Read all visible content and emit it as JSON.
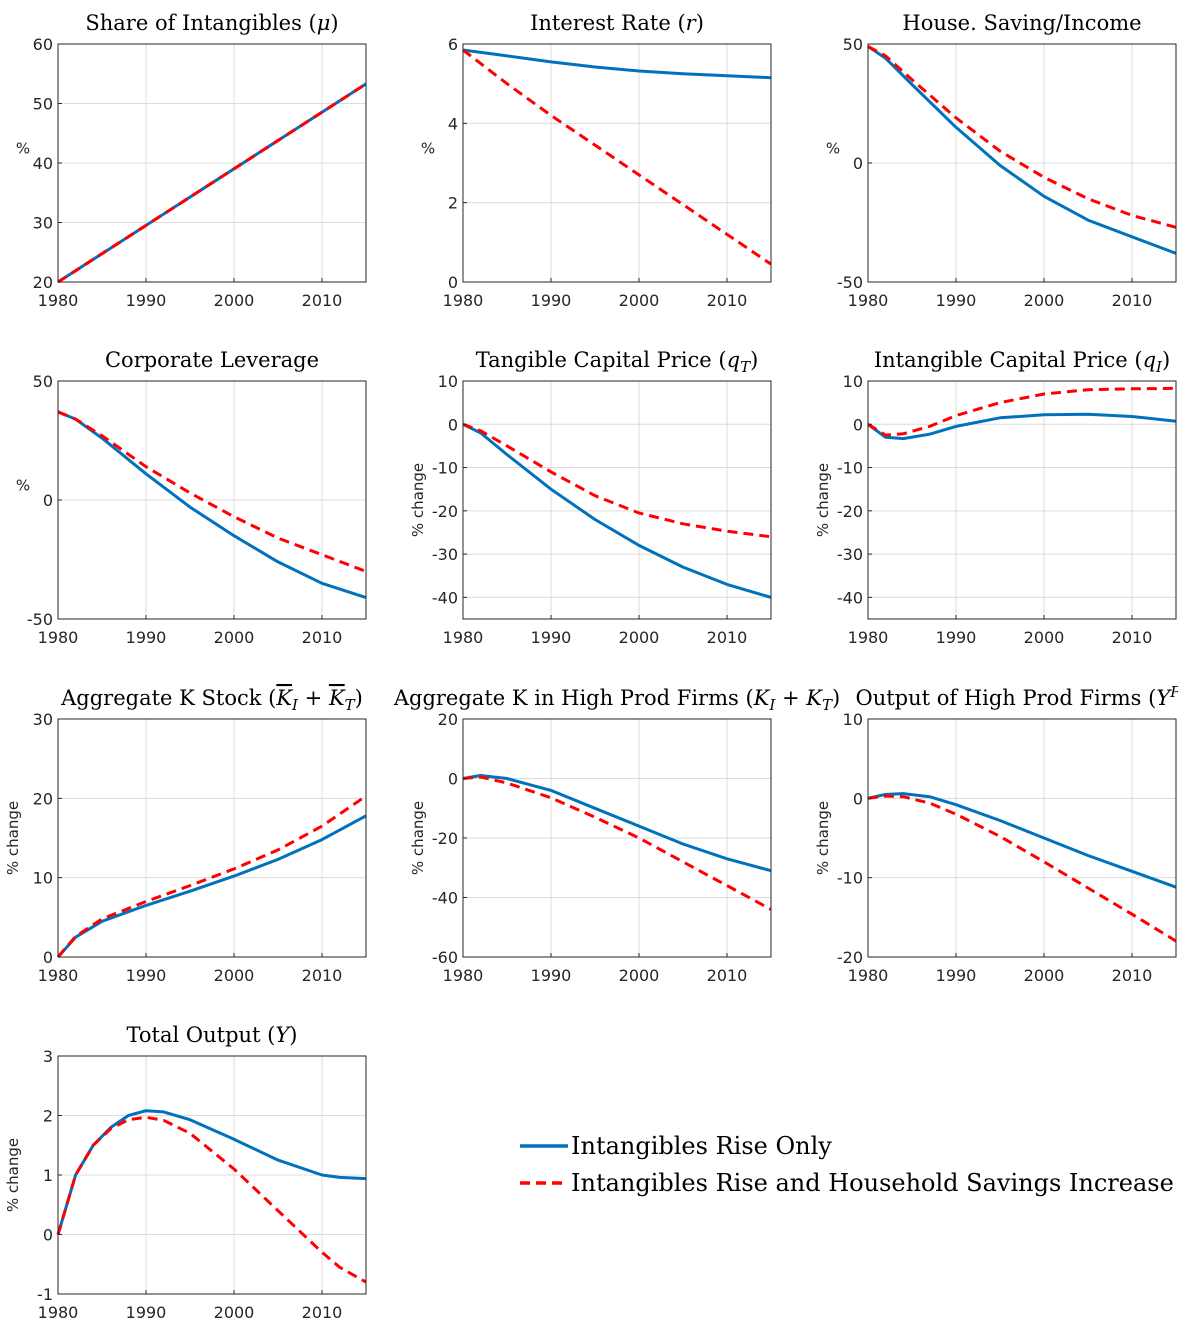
{
  "legend": {
    "series1": "Intangibles Rise Only",
    "series2": "Intangibles Rise and Household Savings Increase",
    "color1": "#0072BD",
    "color2": "#FF0000"
  },
  "chart_data": [
    {
      "type": "line",
      "title": "Share of Intangibles",
      "title_sym": "μ",
      "ylabel": "%",
      "xlim": [
        1980,
        2015
      ],
      "ylim": [
        20,
        60
      ],
      "xticks": [
        1980,
        1990,
        2000,
        2010
      ],
      "yticks": [
        20,
        30,
        40,
        50,
        60
      ],
      "x": [
        1980,
        2015
      ],
      "series": [
        {
          "values": [
            20,
            53.3
          ]
        },
        {
          "values": [
            20,
            53.3
          ]
        }
      ]
    },
    {
      "type": "line",
      "title": "Interest Rate",
      "title_sym": "r",
      "ylabel": "%",
      "xlim": [
        1980,
        2015
      ],
      "ylim": [
        0,
        6
      ],
      "xticks": [
        1980,
        1990,
        2000,
        2010
      ],
      "yticks": [
        0,
        2,
        4,
        6
      ],
      "x": [
        1980,
        1985,
        1990,
        1995,
        2000,
        2005,
        2010,
        2015
      ],
      "series": [
        {
          "values": [
            5.85,
            5.7,
            5.55,
            5.42,
            5.32,
            5.25,
            5.2,
            5.15
          ]
        },
        {
          "values": [
            5.85,
            5.0,
            4.2,
            3.45,
            2.7,
            1.95,
            1.2,
            0.45
          ]
        }
      ]
    },
    {
      "type": "line",
      "title": "House. Saving/Income",
      "title_sym": "",
      "ylabel": "%",
      "xlim": [
        1980,
        2015
      ],
      "ylim": [
        -50,
        50
      ],
      "xticks": [
        1980,
        1990,
        2000,
        2010
      ],
      "yticks": [
        -50,
        0,
        50
      ],
      "x": [
        1980,
        1982,
        1985,
        1990,
        1995,
        2000,
        2005,
        2010,
        2015
      ],
      "series": [
        {
          "values": [
            49,
            44,
            33,
            15,
            -1,
            -14,
            -24,
            -31,
            -38
          ]
        },
        {
          "values": [
            49,
            45,
            35,
            19,
            5,
            -6,
            -15,
            -22,
            -27
          ]
        }
      ]
    },
    {
      "type": "line",
      "title": "Corporate Leverage",
      "title_sym": "",
      "ylabel": "%",
      "xlim": [
        1980,
        2015
      ],
      "ylim": [
        -50,
        50
      ],
      "xticks": [
        1980,
        1990,
        2000,
        2010
      ],
      "yticks": [
        -50,
        0,
        50
      ],
      "x": [
        1980,
        1982,
        1985,
        1990,
        1995,
        2000,
        2005,
        2010,
        2015
      ],
      "series": [
        {
          "values": [
            37,
            34,
            26,
            11,
            -3,
            -15,
            -26,
            -35,
            -41
          ]
        },
        {
          "values": [
            37,
            34,
            27,
            14,
            3,
            -7,
            -16,
            -23,
            -30
          ]
        }
      ]
    },
    {
      "type": "line",
      "title": "Tangible Capital Price",
      "title_sym": "qT",
      "ylabel": "% change",
      "xlim": [
        1980,
        2015
      ],
      "ylim": [
        -45,
        10
      ],
      "xticks": [
        1980,
        1990,
        2000,
        2010
      ],
      "yticks": [
        -40,
        -30,
        -20,
        -10,
        0,
        10
      ],
      "x": [
        1980,
        1982,
        1985,
        1990,
        1995,
        2000,
        2005,
        2010,
        2015
      ],
      "series": [
        {
          "values": [
            0,
            -2,
            -7,
            -15,
            -22,
            -28,
            -33,
            -37,
            -40
          ]
        },
        {
          "values": [
            0,
            -1.5,
            -5,
            -11,
            -16.5,
            -20.5,
            -23,
            -24.7,
            -26
          ]
        }
      ]
    },
    {
      "type": "line",
      "title": "Intangible Capital Price",
      "title_sym": "qI",
      "ylabel": "% change",
      "xlim": [
        1980,
        2015
      ],
      "ylim": [
        -45,
        10
      ],
      "xticks": [
        1980,
        1990,
        2000,
        2010
      ],
      "yticks": [
        -40,
        -30,
        -20,
        -10,
        0,
        10
      ],
      "x": [
        1980,
        1982,
        1984,
        1987,
        1990,
        1995,
        2000,
        2005,
        2010,
        2015
      ],
      "series": [
        {
          "values": [
            0,
            -3,
            -3.3,
            -2.3,
            -0.5,
            1.5,
            2.2,
            2.3,
            1.8,
            0.7
          ]
        },
        {
          "values": [
            0,
            -2.5,
            -2.2,
            -0.5,
            2,
            5,
            7,
            8,
            8.2,
            8.3
          ]
        }
      ]
    },
    {
      "type": "line",
      "title": "Aggregate K Stock",
      "title_sym": "KIbar+KTbar",
      "ylabel": "% change",
      "xlim": [
        1980,
        2015
      ],
      "ylim": [
        0,
        30
      ],
      "xticks": [
        1980,
        1990,
        2000,
        2010
      ],
      "yticks": [
        0,
        10,
        20,
        30
      ],
      "x": [
        1980,
        1982,
        1985,
        1990,
        1995,
        2000,
        2005,
        2010,
        2015
      ],
      "series": [
        {
          "values": [
            0,
            2.5,
            4.5,
            6.5,
            8.3,
            10.2,
            12.3,
            14.8,
            17.8
          ]
        },
        {
          "values": [
            0,
            2.6,
            4.8,
            7,
            9,
            11.1,
            13.5,
            16.5,
            20.3
          ]
        }
      ]
    },
    {
      "type": "line",
      "title": "Aggregate K in High Prod Firms",
      "title_sym": "KI+KT",
      "ylabel": "% change",
      "xlim": [
        1980,
        2015
      ],
      "ylim": [
        -60,
        20
      ],
      "xticks": [
        1980,
        1990,
        2000,
        2010
      ],
      "yticks": [
        -60,
        -40,
        -20,
        0,
        20
      ],
      "x": [
        1980,
        1982,
        1985,
        1990,
        1995,
        2000,
        2005,
        2010,
        2015
      ],
      "series": [
        {
          "values": [
            0,
            1,
            0,
            -4,
            -10,
            -16,
            -22,
            -27,
            -31
          ]
        },
        {
          "values": [
            0,
            0.5,
            -1.5,
            -6.5,
            -13,
            -20,
            -28,
            -36,
            -44
          ]
        }
      ]
    },
    {
      "type": "line",
      "title": "Output of High Prod Firms",
      "title_sym": "YP",
      "ylabel": "% change",
      "xlim": [
        1980,
        2015
      ],
      "ylim": [
        -20,
        10
      ],
      "xticks": [
        1980,
        1990,
        2000,
        2010
      ],
      "yticks": [
        -20,
        -10,
        0,
        10
      ],
      "x": [
        1980,
        1982,
        1984,
        1987,
        1990,
        1995,
        2000,
        2005,
        2010,
        2015
      ],
      "series": [
        {
          "values": [
            0,
            0.5,
            0.6,
            0.2,
            -0.8,
            -2.8,
            -5,
            -7.2,
            -9.2,
            -11.2
          ]
        },
        {
          "values": [
            0,
            0.3,
            0.2,
            -0.6,
            -2,
            -4.8,
            -8,
            -11.3,
            -14.6,
            -18
          ]
        }
      ]
    },
    {
      "type": "line",
      "title": "Total Output",
      "title_sym": "Y",
      "ylabel": "% change",
      "xlim": [
        1980,
        2015
      ],
      "ylim": [
        -1,
        3
      ],
      "xticks": [
        1980,
        1990,
        2000,
        2010
      ],
      "yticks": [
        -1,
        0,
        1,
        2,
        3
      ],
      "x": [
        1980,
        1981,
        1982,
        1984,
        1986,
        1988,
        1990,
        1992,
        1995,
        2000,
        2005,
        2010,
        2012,
        2015
      ],
      "series": [
        {
          "values": [
            0,
            0.5,
            1,
            1.5,
            1.8,
            2,
            2.08,
            2.06,
            1.93,
            1.6,
            1.25,
            1.0,
            0.96,
            0.94
          ]
        },
        {
          "values": [
            0,
            0.5,
            1,
            1.5,
            1.78,
            1.93,
            1.97,
            1.92,
            1.7,
            1.1,
            0.4,
            -0.3,
            -0.55,
            -0.8
          ]
        }
      ]
    }
  ]
}
